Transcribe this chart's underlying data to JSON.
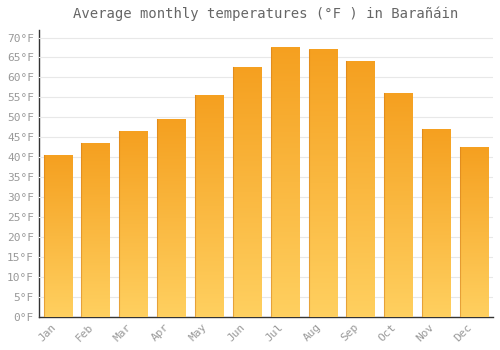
{
  "title": "Average monthly temperatures (°F ) in Barañáin",
  "months": [
    "Jan",
    "Feb",
    "Mar",
    "Apr",
    "May",
    "Jun",
    "Jul",
    "Aug",
    "Sep",
    "Oct",
    "Nov",
    "Dec"
  ],
  "values": [
    40.5,
    43.5,
    46.5,
    49.5,
    55.5,
    62.5,
    67.5,
    67.0,
    64.0,
    56.0,
    47.0,
    42.5
  ],
  "bar_color_bottom": "#FFD060",
  "bar_color_top": "#F5A020",
  "bar_color_left_edge": "#E08010",
  "yticks": [
    0,
    5,
    10,
    15,
    20,
    25,
    30,
    35,
    40,
    45,
    50,
    55,
    60,
    65,
    70
  ],
  "ylim": [
    0,
    72
  ],
  "background_color": "#ffffff",
  "grid_color": "#e8e8e8",
  "tick_label_color": "#999999",
  "title_color": "#666666",
  "title_fontsize": 10,
  "tick_fontsize": 8,
  "bar_width": 0.75
}
